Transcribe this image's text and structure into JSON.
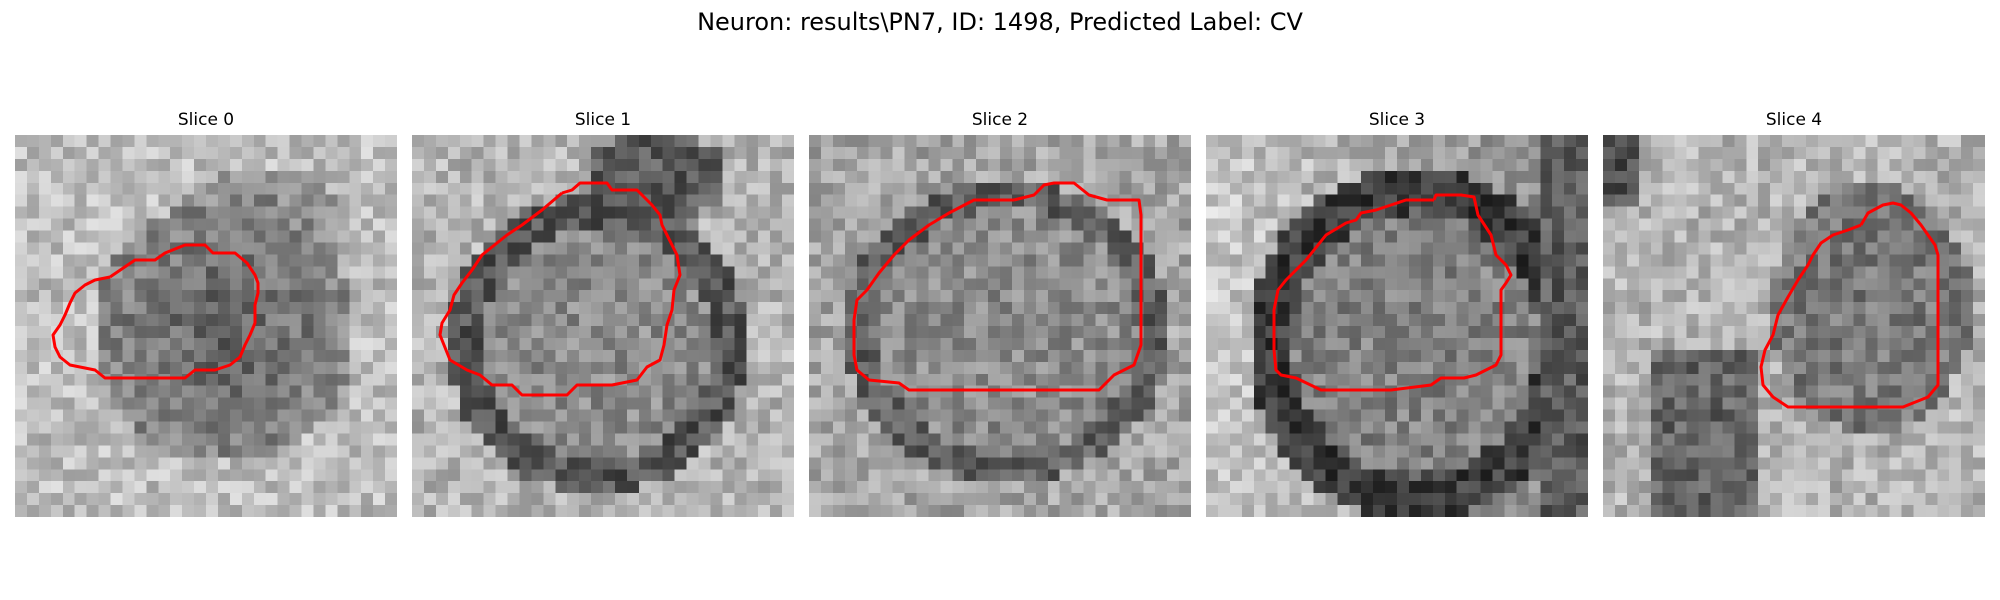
{
  "figure": {
    "title": "Neuron: results\\PN7, ID: 1498, Predicted Label: CV"
  },
  "panels": [
    {
      "title": "Slice 0",
      "contour_color": "#ff0000"
    },
    {
      "title": "Slice 1",
      "contour_color": "#ff0000"
    },
    {
      "title": "Slice 2",
      "contour_color": "#ff0000"
    },
    {
      "title": "Slice 3",
      "contour_color": "#ff0000"
    },
    {
      "title": "Slice 4",
      "contour_color": "#ff0000"
    }
  ]
}
